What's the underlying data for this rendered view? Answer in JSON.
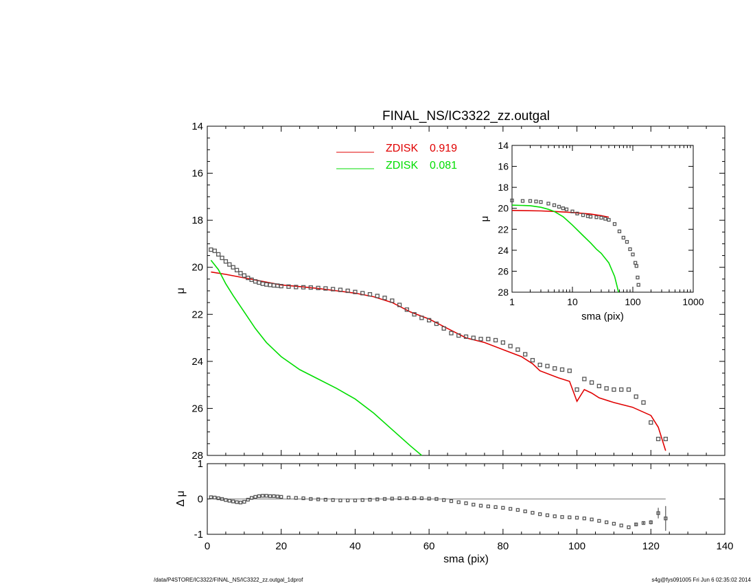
{
  "chart_data": [
    {
      "id": "main",
      "type": "scatter",
      "title": "FINAL_NS/IC3322_zz.outgal",
      "xlabel": "",
      "ylabel": "μ",
      "xlim": [
        0,
        140
      ],
      "ylim": [
        28,
        14
      ],
      "y_inverted": true,
      "xticks": [
        0,
        20,
        40,
        60,
        80,
        100,
        120,
        140
      ],
      "yticks": [
        14,
        16,
        18,
        20,
        22,
        24,
        26,
        28
      ],
      "legend_placement": "top-center",
      "legend": [
        {
          "label": "ZDISK",
          "value": "0.919",
          "color": "#e00000"
        },
        {
          "label": "ZDISK",
          "value": "0.081",
          "color": "#00dd00"
        }
      ],
      "series": [
        {
          "name": "data",
          "kind": "points",
          "color": "#555555",
          "x": [
            1,
            2,
            3,
            4,
            5,
            6,
            7,
            8,
            9,
            10,
            11,
            12,
            13,
            14,
            15,
            16,
            17,
            18,
            19,
            20,
            22,
            24,
            26,
            28,
            30,
            32,
            34,
            36,
            38,
            40,
            42,
            44,
            46,
            48,
            50,
            52,
            54,
            56,
            58,
            60,
            62,
            64,
            66,
            68,
            70,
            72,
            74,
            76,
            78,
            80,
            82,
            84,
            86,
            88,
            90,
            92,
            94,
            96,
            98,
            100,
            102,
            104,
            106,
            108,
            110,
            112,
            114,
            116,
            118,
            120,
            122,
            124
          ],
          "y": [
            19.25,
            19.3,
            19.45,
            19.6,
            19.75,
            19.88,
            20.0,
            20.12,
            20.25,
            20.35,
            20.45,
            20.53,
            20.6,
            20.65,
            20.7,
            20.73,
            20.75,
            20.77,
            20.78,
            20.8,
            20.82,
            20.84,
            20.85,
            20.86,
            20.88,
            20.9,
            20.93,
            20.96,
            21.0,
            21.05,
            21.1,
            21.15,
            21.22,
            21.3,
            21.42,
            21.6,
            21.8,
            22.0,
            22.15,
            22.25,
            22.4,
            22.6,
            22.8,
            22.9,
            22.95,
            23.0,
            23.05,
            23.05,
            23.1,
            23.2,
            23.35,
            23.5,
            23.7,
            23.95,
            24.15,
            24.2,
            24.3,
            24.35,
            24.4,
            25.2,
            24.75,
            24.9,
            25.05,
            25.15,
            25.2,
            25.2,
            25.2,
            25.5,
            25.75,
            26.6,
            27.3,
            27.3
          ]
        },
        {
          "name": "ZDISK 0.919",
          "kind": "line",
          "color": "#e00000",
          "x": [
            1,
            5,
            10,
            15,
            20,
            25,
            30,
            35,
            40,
            45,
            50,
            55,
            60,
            65,
            70,
            75,
            80,
            85,
            88,
            90,
            95,
            98,
            100,
            102,
            104,
            106,
            110,
            115,
            120,
            122,
            124
          ],
          "y": [
            20.2,
            20.3,
            20.45,
            20.6,
            20.75,
            20.82,
            20.9,
            21.0,
            21.1,
            21.25,
            21.5,
            21.9,
            22.2,
            22.6,
            23.0,
            23.2,
            23.5,
            23.8,
            24.1,
            24.4,
            24.7,
            24.85,
            25.7,
            25.2,
            25.35,
            25.55,
            25.75,
            25.95,
            26.3,
            26.8,
            27.8
          ]
        },
        {
          "name": "ZDISK 0.081",
          "kind": "line",
          "color": "#00dd00",
          "x": [
            1,
            3,
            5,
            7,
            10,
            13,
            16,
            20,
            25,
            30,
            35,
            40,
            45,
            50,
            55,
            58
          ],
          "y": [
            19.7,
            20.1,
            20.7,
            21.2,
            21.9,
            22.6,
            23.2,
            23.8,
            24.35,
            24.75,
            25.15,
            25.6,
            26.2,
            26.9,
            27.6,
            28.0
          ]
        }
      ]
    },
    {
      "id": "residual",
      "type": "scatter",
      "xlabel": "sma (pix)",
      "ylabel": "Δ μ",
      "xlim": [
        0,
        140
      ],
      "ylim": [
        -1,
        1
      ],
      "xticks": [
        0,
        20,
        40,
        60,
        80,
        100,
        120,
        140
      ],
      "yticks": [
        1,
        0,
        -1
      ],
      "reference_line_y": 0,
      "series": [
        {
          "name": "residual",
          "kind": "points",
          "color": "#555555",
          "x": [
            1,
            2,
            3,
            4,
            5,
            6,
            7,
            8,
            9,
            10,
            11,
            12,
            13,
            14,
            15,
            16,
            17,
            18,
            19,
            20,
            22,
            24,
            26,
            28,
            30,
            32,
            34,
            36,
            38,
            40,
            42,
            44,
            46,
            48,
            50,
            52,
            54,
            56,
            58,
            60,
            62,
            64,
            66,
            68,
            70,
            72,
            74,
            76,
            78,
            80,
            82,
            84,
            86,
            88,
            90,
            92,
            94,
            96,
            98,
            100,
            102,
            104,
            106,
            108,
            110,
            112,
            114,
            116,
            118,
            120,
            122,
            124
          ],
          "y": [
            0.05,
            0.04,
            0.02,
            0.0,
            -0.03,
            -0.05,
            -0.07,
            -0.09,
            -0.1,
            -0.08,
            -0.02,
            0.03,
            0.06,
            0.08,
            0.09,
            0.09,
            0.08,
            0.08,
            0.07,
            0.06,
            0.04,
            0.03,
            0.02,
            0.0,
            -0.01,
            -0.02,
            -0.03,
            -0.04,
            -0.04,
            -0.04,
            -0.03,
            -0.02,
            -0.01,
            0.0,
            0.01,
            0.02,
            0.02,
            0.02,
            0.02,
            0.01,
            0.0,
            -0.03,
            -0.06,
            -0.09,
            -0.12,
            -0.16,
            -0.19,
            -0.21,
            -0.23,
            -0.25,
            -0.28,
            -0.31,
            -0.35,
            -0.39,
            -0.43,
            -0.46,
            -0.49,
            -0.51,
            -0.52,
            -0.53,
            -0.55,
            -0.58,
            -0.62,
            -0.66,
            -0.7,
            -0.75,
            -0.8,
            -0.72,
            -0.68,
            -0.66,
            -0.4,
            -0.55
          ],
          "errors": [
            0,
            0,
            0,
            0,
            0,
            0,
            0,
            0,
            0,
            0,
            0,
            0,
            0,
            0,
            0,
            0,
            0,
            0,
            0,
            0,
            0,
            0,
            0,
            0,
            0,
            0,
            0,
            0,
            0,
            0,
            0,
            0,
            0,
            0,
            0,
            0,
            0,
            0,
            0,
            0,
            0,
            0,
            0,
            0,
            0,
            0,
            0,
            0,
            0,
            0,
            0,
            0,
            0,
            0,
            0,
            0,
            0,
            0,
            0,
            0,
            0,
            0,
            0,
            0,
            0,
            0,
            0,
            0.05,
            0.05,
            0.06,
            0.15,
            0.35
          ]
        }
      ]
    },
    {
      "id": "inset",
      "type": "scatter",
      "xlabel": "sma (pix)",
      "ylabel": "μ",
      "xscale": "log",
      "xlim": [
        1,
        1000
      ],
      "ylim": [
        28,
        14
      ],
      "y_inverted": true,
      "xticks": [
        "1",
        "10",
        "100",
        "1000"
      ],
      "yticks": [
        14,
        16,
        18,
        20,
        22,
        24,
        26,
        28
      ],
      "series": [
        {
          "name": "data",
          "kind": "points",
          "color": "#555555",
          "x": [
            1,
            1.5,
            2,
            2.5,
            3,
            4,
            5,
            6,
            7,
            8,
            10,
            12,
            15,
            18,
            20,
            25,
            30,
            35,
            40,
            50,
            60,
            70,
            80,
            90,
            100,
            110,
            115,
            120,
            124
          ],
          "y": [
            19.25,
            19.3,
            19.3,
            19.35,
            19.4,
            19.55,
            19.7,
            19.85,
            20.0,
            20.1,
            20.3,
            20.5,
            20.65,
            20.75,
            20.8,
            20.85,
            20.9,
            21.0,
            21.1,
            21.5,
            22.2,
            22.8,
            23.2,
            23.9,
            24.4,
            25.2,
            25.5,
            26.6,
            27.3
          ]
        },
        {
          "name": "ZDISK 0.919",
          "kind": "line",
          "color": "#e00000",
          "x": [
            1,
            3,
            5,
            10,
            20,
            30,
            40
          ],
          "y": [
            20.2,
            20.25,
            20.3,
            20.4,
            20.55,
            20.7,
            20.85
          ]
        },
        {
          "name": "ZDISK 0.081",
          "kind": "line",
          "color": "#00dd00",
          "x": [
            1,
            2,
            3,
            4,
            5,
            7,
            10,
            15,
            20,
            25,
            30,
            40,
            50,
            58
          ],
          "y": [
            19.7,
            19.75,
            19.9,
            20.1,
            20.3,
            20.8,
            21.6,
            22.6,
            23.3,
            23.9,
            24.3,
            25.2,
            26.5,
            28.0
          ]
        }
      ]
    }
  ],
  "footer": {
    "left": "/data/P4STORE/IC3322/FINAL_NS/IC3322_zz.outgal_1dprof",
    "right": "s4g@fys091005  Fri Jun  6 02:35:02 2014"
  }
}
